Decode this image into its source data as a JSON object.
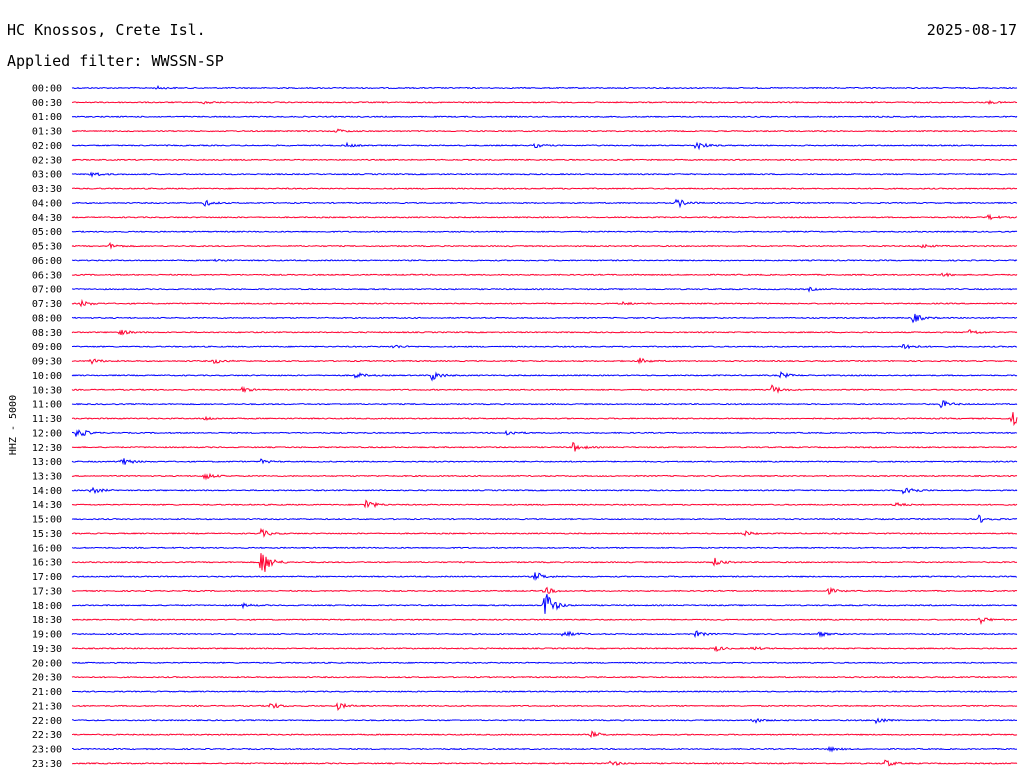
{
  "header": {
    "station": "HC Knossos, Crete Isl.",
    "date": "2025-08-17",
    "filter": "Applied filter: WWSSN-SP"
  },
  "colors": {
    "trace_a": "#0000ff",
    "trace_b": "#ff0030",
    "text": "#000000",
    "background": "#ffffff"
  },
  "chart_data": {
    "type": "line",
    "title": "HC Knossos, Crete Isl.",
    "ylabel": "HHZ - 5000",
    "xlabel": "",
    "grid": false,
    "legend": "none",
    "traces": [
      {
        "label": "00:00",
        "color": "#0000ff",
        "events": [
          {
            "pos": 0.09,
            "amp": 1.5
          }
        ]
      },
      {
        "label": "00:30",
        "color": "#ff0030",
        "events": [
          {
            "pos": 0.14,
            "amp": 1.5
          },
          {
            "pos": 0.97,
            "amp": 1.4
          }
        ]
      },
      {
        "label": "01:00",
        "color": "#0000ff",
        "events": []
      },
      {
        "label": "01:30",
        "color": "#ff0030",
        "events": [
          {
            "pos": 0.28,
            "amp": 2
          }
        ]
      },
      {
        "label": "02:00",
        "color": "#0000ff",
        "events": [
          {
            "pos": 0.29,
            "amp": 2
          },
          {
            "pos": 0.49,
            "amp": 2
          },
          {
            "pos": 0.66,
            "amp": 5
          }
        ]
      },
      {
        "label": "02:30",
        "color": "#ff0030",
        "events": []
      },
      {
        "label": "03:00",
        "color": "#0000ff",
        "events": [
          {
            "pos": 0.02,
            "amp": 3
          }
        ]
      },
      {
        "label": "03:30",
        "color": "#ff0030",
        "events": []
      },
      {
        "label": "04:00",
        "color": "#0000ff",
        "events": [
          {
            "pos": 0.14,
            "amp": 3
          },
          {
            "pos": 0.64,
            "amp": 5
          }
        ]
      },
      {
        "label": "04:30",
        "color": "#ff0030",
        "events": [
          {
            "pos": 0.97,
            "amp": 2.5
          }
        ]
      },
      {
        "label": "05:00",
        "color": "#0000ff",
        "events": []
      },
      {
        "label": "05:30",
        "color": "#ff0030",
        "events": [
          {
            "pos": 0.04,
            "amp": 2.5
          },
          {
            "pos": 0.9,
            "amp": 2
          }
        ]
      },
      {
        "label": "06:00",
        "color": "#0000ff",
        "events": [
          {
            "pos": 0.15,
            "amp": 2
          }
        ]
      },
      {
        "label": "06:30",
        "color": "#ff0030",
        "events": [
          {
            "pos": 0.92,
            "amp": 2
          }
        ]
      },
      {
        "label": "07:00",
        "color": "#0000ff",
        "events": [
          {
            "pos": 0.78,
            "amp": 1.5
          }
        ]
      },
      {
        "label": "07:30",
        "color": "#ff0030",
        "events": [
          {
            "pos": 0.01,
            "amp": 3
          },
          {
            "pos": 0.58,
            "amp": 2
          }
        ]
      },
      {
        "label": "08:00",
        "color": "#0000ff",
        "events": [
          {
            "pos": 0.89,
            "amp": 5
          }
        ]
      },
      {
        "label": "08:30",
        "color": "#ff0030",
        "events": [
          {
            "pos": 0.05,
            "amp": 3
          },
          {
            "pos": 0.95,
            "amp": 3
          }
        ]
      },
      {
        "label": "09:00",
        "color": "#0000ff",
        "events": [
          {
            "pos": 0.34,
            "amp": 2
          },
          {
            "pos": 0.88,
            "amp": 4
          }
        ]
      },
      {
        "label": "09:30",
        "color": "#ff0030",
        "events": [
          {
            "pos": 0.02,
            "amp": 3
          },
          {
            "pos": 0.15,
            "amp": 2.5
          },
          {
            "pos": 0.6,
            "amp": 3
          }
        ]
      },
      {
        "label": "10:00",
        "color": "#0000ff",
        "events": [
          {
            "pos": 0.3,
            "amp": 3
          },
          {
            "pos": 0.38,
            "amp": 6
          },
          {
            "pos": 0.75,
            "amp": 3
          }
        ]
      },
      {
        "label": "10:30",
        "color": "#ff0030",
        "events": [
          {
            "pos": 0.18,
            "amp": 2.5
          },
          {
            "pos": 0.74,
            "amp": 5
          }
        ]
      },
      {
        "label": "11:00",
        "color": "#0000ff",
        "events": [
          {
            "pos": 0.92,
            "amp": 4
          }
        ]
      },
      {
        "label": "11:30",
        "color": "#ff0030",
        "events": [
          {
            "pos": 0.14,
            "amp": 2
          },
          {
            "pos": 0.995,
            "amp": 7
          }
        ]
      },
      {
        "label": "12:00",
        "color": "#0000ff",
        "events": [
          {
            "pos": 0.005,
            "amp": 6
          },
          {
            "pos": 0.46,
            "amp": 3
          }
        ]
      },
      {
        "label": "12:30",
        "color": "#ff0030",
        "events": [
          {
            "pos": 0.53,
            "amp": 5
          }
        ]
      },
      {
        "label": "13:00",
        "color": "#0000ff",
        "events": [
          {
            "pos": 0.05,
            "amp": 6
          },
          {
            "pos": 0.2,
            "amp": 2
          }
        ]
      },
      {
        "label": "13:30",
        "color": "#ff0030",
        "events": [
          {
            "pos": 0.14,
            "amp": 4
          }
        ]
      },
      {
        "label": "14:00",
        "color": "#0000ff",
        "events": [
          {
            "pos": 0.02,
            "amp": 4
          },
          {
            "pos": 0.88,
            "amp": 8
          }
        ]
      },
      {
        "label": "14:30",
        "color": "#ff0030",
        "events": [
          {
            "pos": 0.31,
            "amp": 6
          },
          {
            "pos": 0.87,
            "amp": 3
          }
        ]
      },
      {
        "label": "15:00",
        "color": "#0000ff",
        "events": [
          {
            "pos": 0.96,
            "amp": 4
          }
        ]
      },
      {
        "label": "15:30",
        "color": "#ff0030",
        "events": [
          {
            "pos": 0.2,
            "amp": 4
          },
          {
            "pos": 0.71,
            "amp": 3
          }
        ]
      },
      {
        "label": "16:00",
        "color": "#0000ff",
        "events": []
      },
      {
        "label": "16:30",
        "color": "#ff0030",
        "events": [
          {
            "pos": 0.2,
            "amp": 17
          },
          {
            "pos": 0.68,
            "amp": 4
          }
        ]
      },
      {
        "label": "17:00",
        "color": "#0000ff",
        "events": [
          {
            "pos": 0.49,
            "amp": 5
          }
        ]
      },
      {
        "label": "17:30",
        "color": "#ff0030",
        "events": [
          {
            "pos": 0.5,
            "amp": 4
          },
          {
            "pos": 0.8,
            "amp": 3
          }
        ]
      },
      {
        "label": "18:00",
        "color": "#0000ff",
        "events": [
          {
            "pos": 0.5,
            "amp": 18
          },
          {
            "pos": 0.18,
            "amp": 2
          }
        ]
      },
      {
        "label": "18:30",
        "color": "#ff0030",
        "events": [
          {
            "pos": 0.96,
            "amp": 4
          }
        ]
      },
      {
        "label": "19:00",
        "color": "#0000ff",
        "events": [
          {
            "pos": 0.52,
            "amp": 4
          },
          {
            "pos": 0.66,
            "amp": 3
          },
          {
            "pos": 0.79,
            "amp": 2.5
          }
        ]
      },
      {
        "label": "19:30",
        "color": "#ff0030",
        "events": [
          {
            "pos": 0.68,
            "amp": 3
          },
          {
            "pos": 0.72,
            "amp": 2
          }
        ]
      },
      {
        "label": "20:00",
        "color": "#0000ff",
        "events": []
      },
      {
        "label": "20:30",
        "color": "#ff0030",
        "events": []
      },
      {
        "label": "21:00",
        "color": "#0000ff",
        "events": []
      },
      {
        "label": "21:30",
        "color": "#ff0030",
        "events": [
          {
            "pos": 0.21,
            "amp": 3.5
          },
          {
            "pos": 0.28,
            "amp": 4
          }
        ]
      },
      {
        "label": "22:00",
        "color": "#0000ff",
        "events": [
          {
            "pos": 0.72,
            "amp": 3
          },
          {
            "pos": 0.85,
            "amp": 4
          }
        ]
      },
      {
        "label": "22:30",
        "color": "#ff0030",
        "events": [
          {
            "pos": 0.55,
            "amp": 3
          }
        ]
      },
      {
        "label": "23:00",
        "color": "#0000ff",
        "events": [
          {
            "pos": 0.8,
            "amp": 2.5
          }
        ]
      },
      {
        "label": "23:30",
        "color": "#ff0030",
        "events": [
          {
            "pos": 0.57,
            "amp": 3
          },
          {
            "pos": 0.86,
            "amp": 4
          }
        ]
      }
    ]
  }
}
